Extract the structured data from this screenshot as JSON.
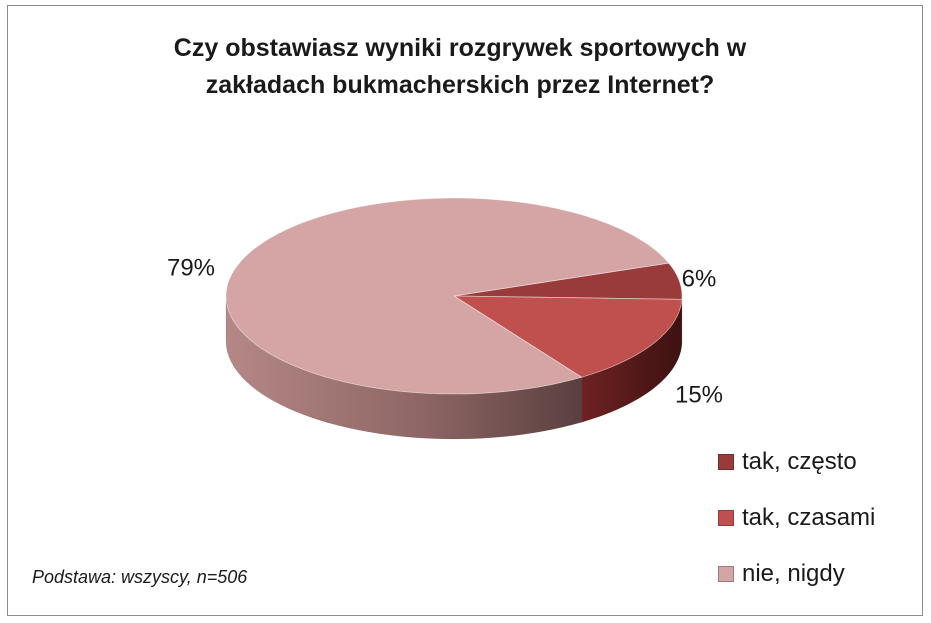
{
  "chart_data": {
    "type": "pie",
    "title": "Czy obstawiasz wyniki rozgrywek sportowych w zakładach bukmacherskich przez Internet?",
    "title_lines": [
      "Czy obstawiasz wyniki rozgrywek sportowych w",
      "zakładach bukmacherskich przez Internet?"
    ],
    "categories": [
      "tak, często",
      "tak, czasami",
      "nie, nigdy"
    ],
    "values": [
      6,
      15,
      79
    ],
    "data_labels": [
      "6%",
      "15%",
      "79%"
    ],
    "colors": [
      "#9a3b3b",
      "#c0504d",
      "#d4a5a4"
    ],
    "legend_position": "right",
    "style": "3d-pie"
  },
  "footnote": "Podstawa: wszyscy, n=506"
}
